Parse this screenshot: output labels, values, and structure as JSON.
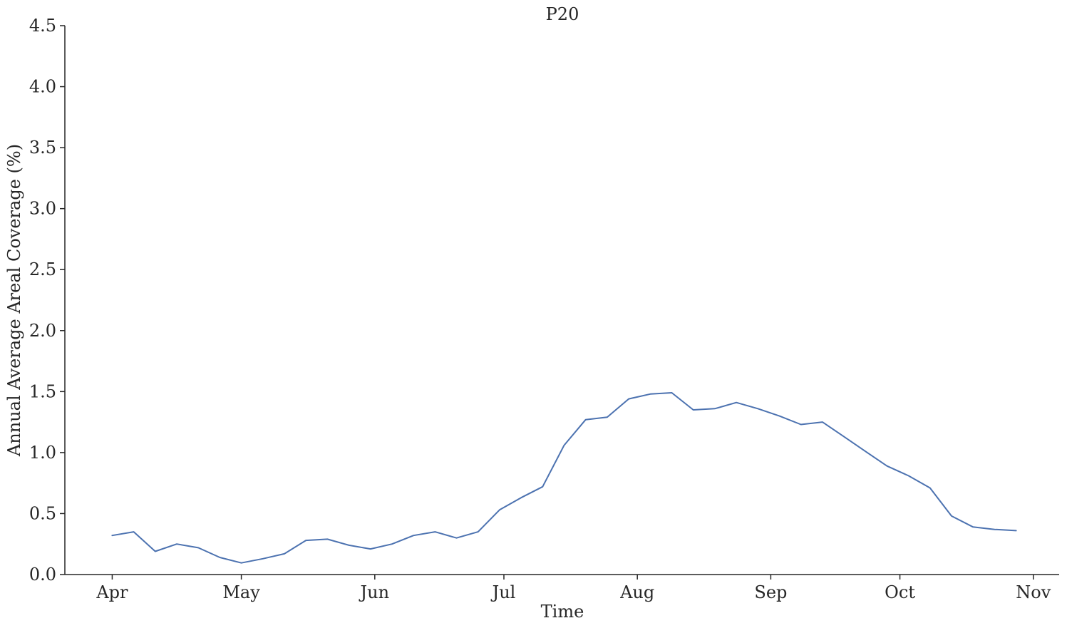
{
  "chart_data": {
    "type": "line",
    "title": "P20",
    "xlabel": "Time",
    "ylabel": "Annual Average Areal Coverage (%)",
    "x_tick_labels": [
      "Apr",
      "May",
      "Jun",
      "Jul",
      "Aug",
      "Sep",
      "Oct",
      "Nov"
    ],
    "x_tick_dates": [
      "04-01",
      "05-01",
      "06-01",
      "07-01",
      "08-01",
      "09-01",
      "10-01",
      "11-01"
    ],
    "y_ticks": [
      "0.0",
      "0.5",
      "1.0",
      "1.5",
      "2.0",
      "2.5",
      "3.0",
      "3.5",
      "4.0",
      "4.5"
    ],
    "xlim": [
      "03-21",
      "11-07"
    ],
    "ylim": [
      0,
      4.5
    ],
    "grid": false,
    "series": [
      {
        "color": "#4c72b0",
        "x": [
          "04-01",
          "04-06",
          "04-11",
          "04-16",
          "04-21",
          "04-26",
          "05-01",
          "05-06",
          "05-11",
          "05-16",
          "05-21",
          "05-26",
          "05-31",
          "06-05",
          "06-10",
          "06-15",
          "06-20",
          "06-25",
          "06-30",
          "07-05",
          "07-10",
          "07-15",
          "07-20",
          "07-25",
          "07-30",
          "08-04",
          "08-09",
          "08-14",
          "08-19",
          "08-24",
          "08-29",
          "09-03",
          "09-08",
          "09-13",
          "09-18",
          "09-23",
          "09-28",
          "10-03",
          "10-08",
          "10-13",
          "10-18",
          "10-23",
          "10-28"
        ],
        "y": [
          0.32,
          0.35,
          0.19,
          0.25,
          0.22,
          0.14,
          0.095,
          0.13,
          0.17,
          0.28,
          0.29,
          0.24,
          0.21,
          0.25,
          0.32,
          0.35,
          0.3,
          0.35,
          0.53,
          0.63,
          0.72,
          1.06,
          1.27,
          1.29,
          1.44,
          1.48,
          1.49,
          1.35,
          1.36,
          1.41,
          1.36,
          1.3,
          1.23,
          1.25,
          1.13,
          1.01,
          0.89,
          0.81,
          0.71,
          0.48,
          0.39,
          0.37,
          0.36
        ]
      }
    ]
  }
}
